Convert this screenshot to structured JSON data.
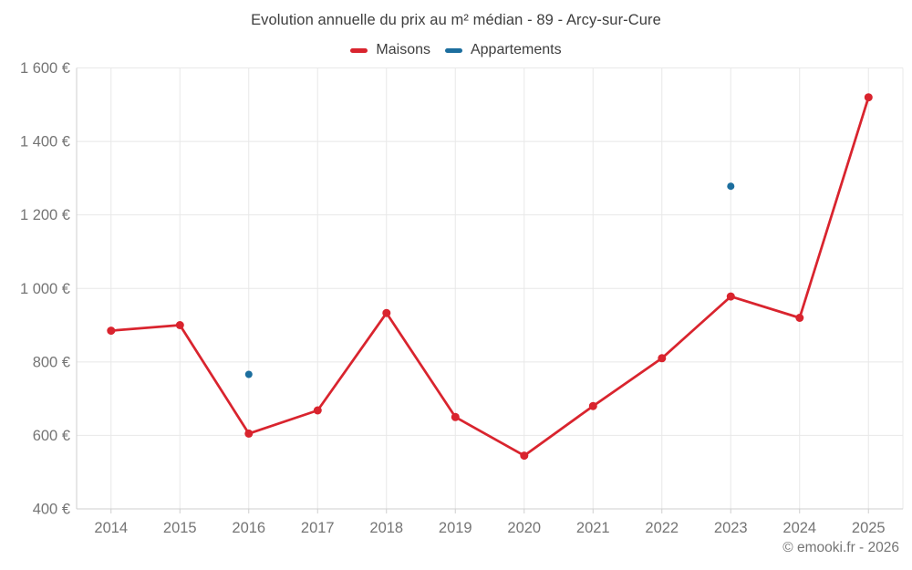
{
  "page": {
    "footer": "© emooki.fr - 2026"
  },
  "chart_data": {
    "type": "line",
    "title": "Evolution annuelle du prix au m² médian - 89 - Arcy-sur-Cure",
    "categories": [
      "2014",
      "2015",
      "2016",
      "2017",
      "2018",
      "2019",
      "2020",
      "2021",
      "2022",
      "2023",
      "2024",
      "2025"
    ],
    "series": [
      {
        "name": "Maisons",
        "color": "#d9242e",
        "connected": true,
        "values": [
          885,
          900,
          605,
          668,
          933,
          650,
          545,
          680,
          810,
          978,
          920,
          1520
        ]
      },
      {
        "name": "Appartements",
        "color": "#1c6e9e",
        "connected": false,
        "values": [
          null,
          null,
          766,
          null,
          null,
          null,
          null,
          null,
          null,
          1278,
          null,
          null
        ]
      }
    ],
    "ylabel": "",
    "xlabel": "",
    "ylim": [
      400,
      1600
    ],
    "y_ticks": [
      {
        "value": 400,
        "label": "400 €"
      },
      {
        "value": 600,
        "label": "600 €"
      },
      {
        "value": 800,
        "label": "800 €"
      },
      {
        "value": 1000,
        "label": "1 000 €"
      },
      {
        "value": 1200,
        "label": "1 200 €"
      },
      {
        "value": 1400,
        "label": "1 400 €"
      },
      {
        "value": 1600,
        "label": "1 600 €"
      }
    ],
    "grid": true,
    "legend_position": "top",
    "colors": {
      "grid": "#e8e8e8",
      "axis": "#cfcfcf",
      "tick_label": "#757575",
      "title_text": "#3e3e3e",
      "background": "#ffffff"
    }
  }
}
